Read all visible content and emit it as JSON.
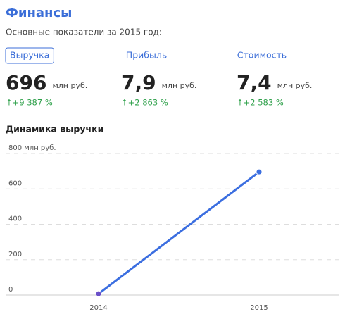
{
  "header": {
    "title": "Финансы",
    "subtitle": "Основные показатели за 2015 год:"
  },
  "metrics": [
    {
      "label": "Выручка",
      "value": "696",
      "unit": "млн руб.",
      "change": "↑+9 387 %",
      "active": true
    },
    {
      "label": "Прибыль",
      "value": "7,9",
      "unit": "млн руб.",
      "change": "↑+2 863 %",
      "active": false
    },
    {
      "label": "Стоимость",
      "value": "7,4",
      "unit": "млн руб.",
      "change": "↑+2 583 %",
      "active": false
    }
  ],
  "chart_data": {
    "type": "line",
    "title": "Динамика выручки",
    "categories": [
      "2014",
      "2015"
    ],
    "values": [
      7.3,
      696
    ],
    "color": "#3b6ee0",
    "ylim": [
      0,
      800
    ],
    "yticks": [
      0,
      200,
      400,
      600,
      {
        "value": 800,
        "label": "800 млн руб."
      }
    ],
    "grid": true
  }
}
